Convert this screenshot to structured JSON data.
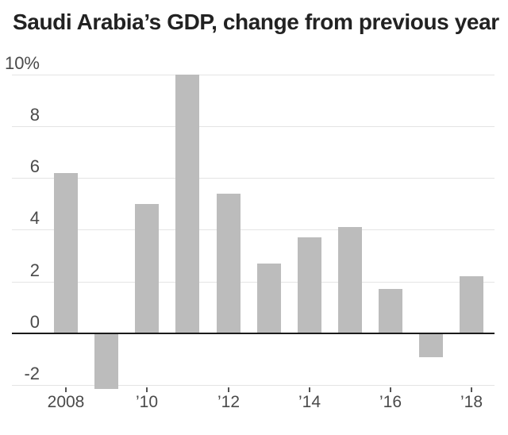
{
  "title": "Saudi Arabia’s GDP, change from previous year",
  "chart_data": {
    "type": "bar",
    "title": "Saudi Arabia’s GDP, change from previous year",
    "categories": [
      "2008",
      "2009",
      "2010",
      "2011",
      "2012",
      "2013",
      "2014",
      "2015",
      "2016",
      "2017",
      "2018"
    ],
    "values": [
      6.2,
      -2.1,
      5.0,
      10.0,
      5.4,
      2.7,
      3.7,
      4.1,
      1.7,
      -0.9,
      2.2
    ],
    "unit": "%",
    "xlabel": "",
    "ylabel": "",
    "ylim": [
      -2.6,
      10.2
    ],
    "grid": "horizontal",
    "legend": "none",
    "y_ticks": [
      {
        "value": 10,
        "label": "10%"
      },
      {
        "value": 8,
        "label": "8"
      },
      {
        "value": 6,
        "label": "6"
      },
      {
        "value": 4,
        "label": "4"
      },
      {
        "value": 2,
        "label": "2"
      },
      {
        "value": 0,
        "label": "0"
      },
      {
        "value": -2,
        "label": "-2"
      }
    ],
    "x_ticks": [
      {
        "category_index": 0,
        "label": "2008"
      },
      {
        "category_index": 2,
        "label": "’10"
      },
      {
        "category_index": 4,
        "label": "’12"
      },
      {
        "category_index": 6,
        "label": "’14"
      },
      {
        "category_index": 8,
        "label": "’16"
      },
      {
        "category_index": 10,
        "label": "’18"
      }
    ]
  },
  "colors": {
    "background": "#ffffff",
    "bar": "#bcbcbc",
    "gridline": "#e4e4e4",
    "zero_line": "#1b1b1b",
    "title_text": "#222222",
    "axis_text": "#4a4a4a",
    "tick_mark": "#555555"
  }
}
